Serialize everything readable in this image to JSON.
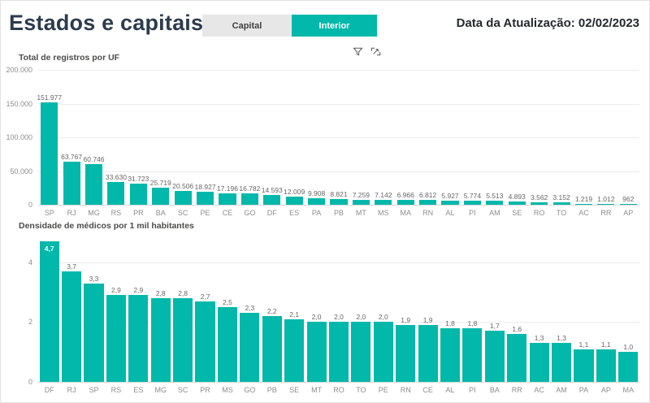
{
  "header": {
    "title": "Estados e capitais",
    "toggle": {
      "capital_label": "Capital",
      "interior_label": "Interior",
      "selected": "Interior"
    },
    "update_date_label": "Data da Atualização: 02/02/2023"
  },
  "visual_header_icons": [
    "filter-icon",
    "focus-mode-icon"
  ],
  "colors": {
    "accent_teal": "#01B8AA",
    "title_text": "#2C3C4E",
    "inactive_button_bg": "#E7E7E7",
    "value_label_text": "#666666",
    "axis_text": "#8D8D8D",
    "gridline": "#ECECEC"
  },
  "chart_data": [
    {
      "type": "bar",
      "title": "Total de registros por UF",
      "categories": [
        "SP",
        "RJ",
        "MG",
        "RS",
        "PR",
        "BA",
        "SC",
        "PE",
        "CE",
        "GO",
        "DF",
        "ES",
        "PA",
        "PB",
        "MT",
        "MS",
        "MA",
        "RN",
        "AL",
        "PI",
        "AM",
        "SE",
        "RO",
        "TO",
        "AC",
        "RR",
        "AP"
      ],
      "values": [
        151977,
        63767,
        60746,
        33630,
        31723,
        25719,
        20506,
        18927,
        17196,
        16782,
        14593,
        12009,
        9908,
        8821,
        7259,
        7142,
        6966,
        6812,
        5927,
        5774,
        5513,
        4893,
        3562,
        3152,
        1219,
        1012,
        962
      ],
      "labels": [
        "151.977",
        "63.767",
        "60.746",
        "33.630",
        "31.723",
        "25.719",
        "20.506",
        "18.927",
        "17.196",
        "16.782",
        "14.593",
        "12.009",
        "9.908",
        "8.821",
        "7.259",
        "7.142",
        "6.966",
        "6.812",
        "5.927",
        "5.774",
        "5.513",
        "4.893",
        "3.562",
        "3.152",
        "1.219",
        "1.012",
        "962"
      ],
      "xlabel": "",
      "ylabel": "",
      "ylim": [
        0,
        200000
      ],
      "grid": true,
      "legend_position": "none",
      "yticks": [
        {
          "value": 200000,
          "label": "200.000"
        },
        {
          "value": 150000,
          "label": "150.000"
        },
        {
          "value": 100000,
          "label": "100.000"
        },
        {
          "value": 50000,
          "label": "50.000"
        },
        {
          "value": 0,
          "label": "0"
        }
      ],
      "first_label_inside": false
    },
    {
      "type": "bar",
      "title": "Densidade de médicos por 1 mil habitantes",
      "categories": [
        "DF",
        "RJ",
        "SP",
        "RS",
        "ES",
        "MG",
        "SC",
        "PR",
        "MS",
        "GO",
        "PB",
        "SE",
        "MT",
        "RO",
        "TO",
        "PE",
        "RN",
        "CE",
        "AL",
        "PI",
        "BA",
        "RR",
        "AC",
        "AM",
        "PA",
        "AP",
        "MA"
      ],
      "values": [
        4.7,
        3.7,
        3.3,
        2.9,
        2.9,
        2.8,
        2.8,
        2.7,
        2.5,
        2.3,
        2.2,
        2.1,
        2.0,
        2.0,
        2.0,
        2.0,
        1.9,
        1.9,
        1.8,
        1.8,
        1.7,
        1.6,
        1.3,
        1.3,
        1.1,
        1.1,
        1.0
      ],
      "labels": [
        "4,7",
        "3,7",
        "3,3",
        "2,9",
        "2,9",
        "2,8",
        "2,8",
        "2,7",
        "2,5",
        "2,3",
        "2,2",
        "2,1",
        "2,0",
        "2,0",
        "2,0",
        "2,0",
        "1,9",
        "1,9",
        "1,8",
        "1,8",
        "1,7",
        "1,6",
        "1,3",
        "1,3",
        "1,1",
        "1,1",
        "1,0"
      ],
      "xlabel": "",
      "ylabel": "",
      "ylim": [
        0,
        4.7
      ],
      "grid": true,
      "legend_position": "none",
      "yticks": [
        {
          "value": 4,
          "label": "4"
        },
        {
          "value": 2,
          "label": "2"
        },
        {
          "value": 0,
          "label": "0"
        }
      ],
      "first_label_inside": true
    }
  ]
}
